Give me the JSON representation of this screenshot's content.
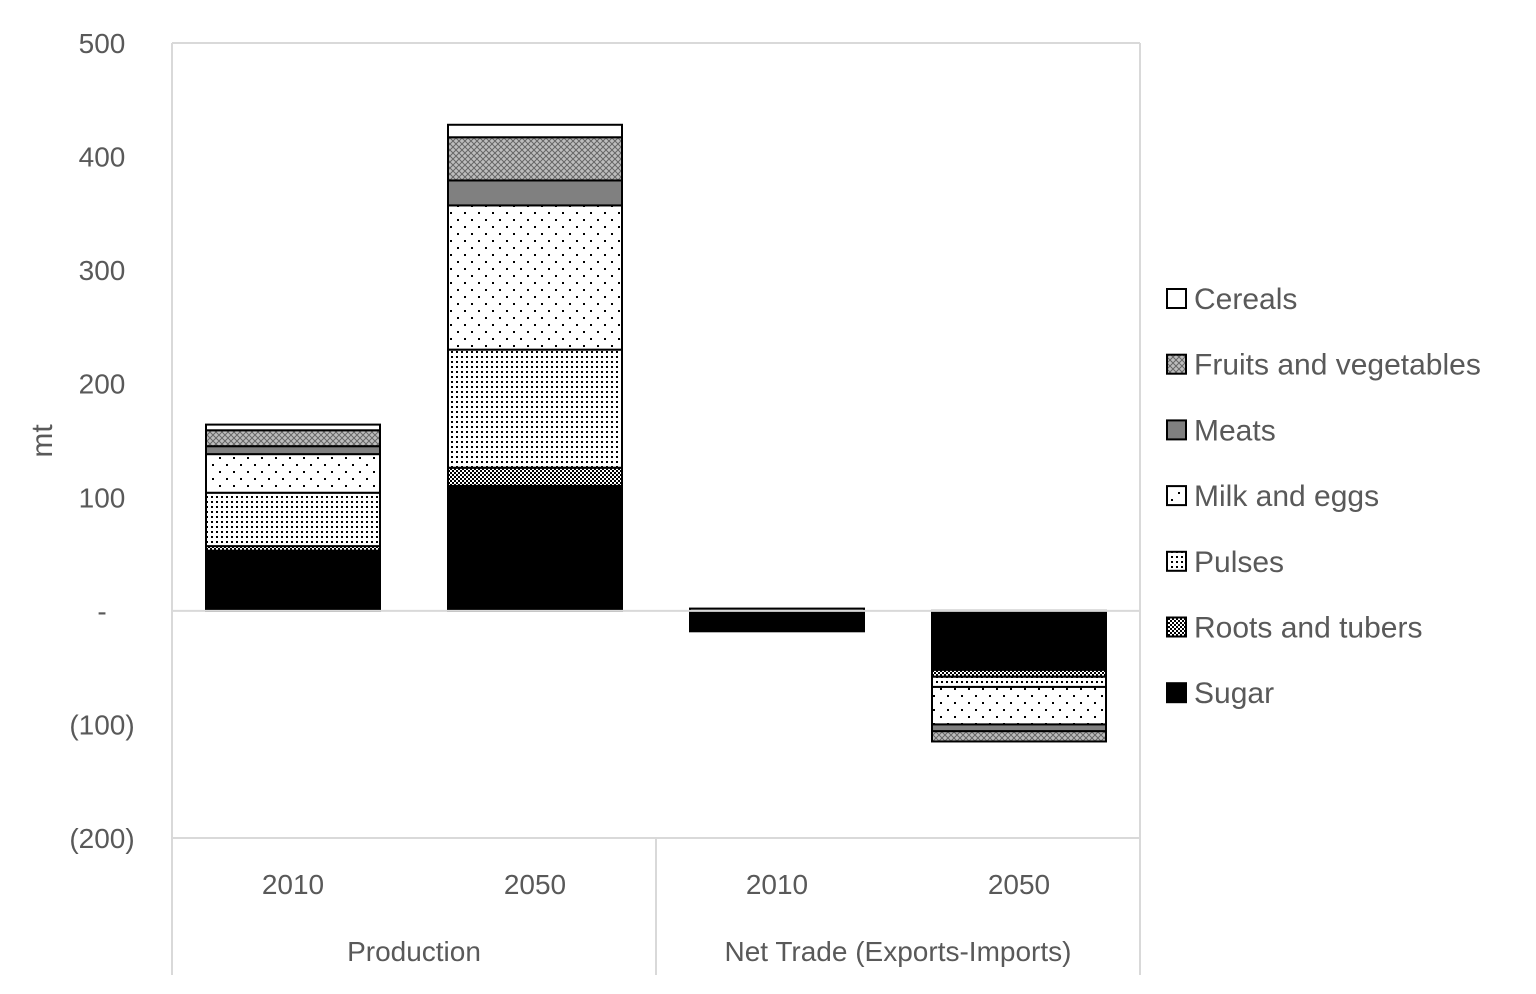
{
  "chart_data": {
    "type": "bar",
    "stacked": true,
    "ylabel": "mt",
    "ylim": [
      -200,
      500
    ],
    "yticks": [
      {
        "value": 500,
        "label": "500"
      },
      {
        "value": 400,
        "label": "400"
      },
      {
        "value": 300,
        "label": "300"
      },
      {
        "value": 200,
        "label": "200"
      },
      {
        "value": 100,
        "label": "100"
      },
      {
        "value": 0,
        "label": "-"
      },
      {
        "value": -100,
        "label": "(100)"
      },
      {
        "value": -200,
        "label": "(200)"
      }
    ],
    "groups": [
      {
        "label": "Production",
        "categories": [
          "2010",
          "2050"
        ]
      },
      {
        "label": "Net Trade (Exports-Imports)",
        "categories": [
          "2010",
          "2050"
        ]
      }
    ],
    "categories": [
      "2010",
      "2050",
      "2010",
      "2050"
    ],
    "legend_position": "right",
    "series": [
      {
        "name": "Sugar",
        "pattern": "solid-black",
        "values": [
          53,
          110,
          -18,
          -52
        ]
      },
      {
        "name": "Roots and tubers",
        "pattern": "dense-checker",
        "values": [
          4,
          16,
          0,
          -6
        ]
      },
      {
        "name": "Pulses",
        "pattern": "dense-dots",
        "values": [
          47,
          104,
          0,
          -9
        ]
      },
      {
        "name": "Milk and eggs",
        "pattern": "sparse-dots",
        "values": [
          34,
          127,
          0,
          -33
        ]
      },
      {
        "name": "Meats",
        "pattern": "solid-gray",
        "values": [
          7,
          22,
          0,
          -6
        ]
      },
      {
        "name": "Fruits and vegetables",
        "pattern": "crosshatch",
        "values": [
          14,
          38,
          0,
          -9
        ]
      },
      {
        "name": "Cereals",
        "pattern": "white",
        "values": [
          5,
          11,
          2,
          0
        ]
      }
    ],
    "legend_order": [
      "Cereals",
      "Fruits and vegetables",
      "Meats",
      "Milk and eggs",
      "Pulses",
      "Roots and tubers",
      "Sugar"
    ]
  }
}
